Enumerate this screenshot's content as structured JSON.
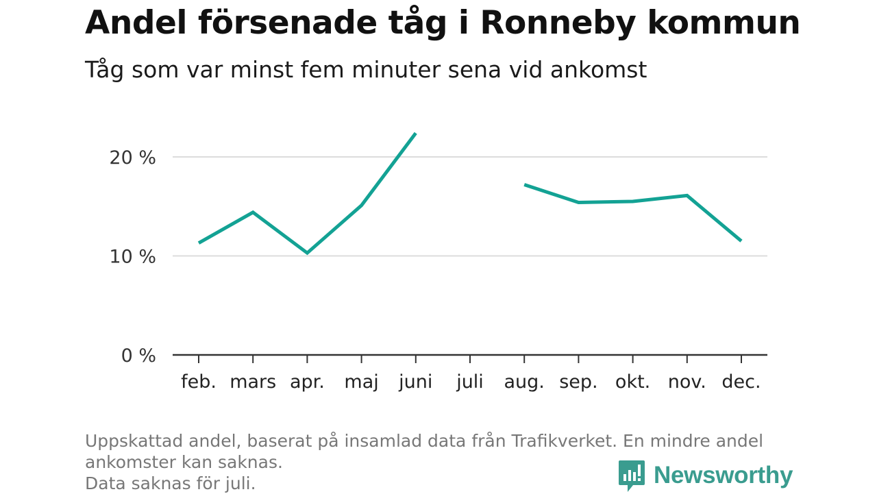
{
  "header": {
    "title": "Andel försenade tåg i Ronneby kommun",
    "subtitle": "Tåg som var minst fem minuter sena vid ankomst"
  },
  "footnote": {
    "line1": "Uppskattad andel, baserat på insamlad data från Trafikverket. En mindre andel",
    "line2": "ankomster kan saknas.",
    "line3": "Data saknas för juli."
  },
  "brand": {
    "name": "Newsworthy",
    "icon": "newsworthy-logo-icon",
    "color": "#3a9c8f"
  },
  "chart_data": {
    "type": "line",
    "title": "Andel försenade tåg i Ronneby kommun",
    "subtitle": "Tåg som var minst fem minuter sena vid ankomst",
    "categories": [
      "feb.",
      "mars",
      "apr.",
      "maj",
      "juni",
      "juli",
      "aug.",
      "sep.",
      "okt.",
      "nov.",
      "dec."
    ],
    "series": [
      {
        "values": [
          11.3,
          14.4,
          10.3,
          15.1,
          22.4,
          null,
          17.2,
          15.4,
          15.5,
          16.1,
          11.5
        ],
        "color": "#13a294"
      }
    ],
    "yticks": [
      0,
      10,
      20
    ],
    "ytick_labels": [
      "0 %",
      "10 %",
      "20 %"
    ],
    "ylim": [
      0,
      25
    ],
    "xlabel": "",
    "ylabel": "",
    "grid": true,
    "legend": "none"
  }
}
